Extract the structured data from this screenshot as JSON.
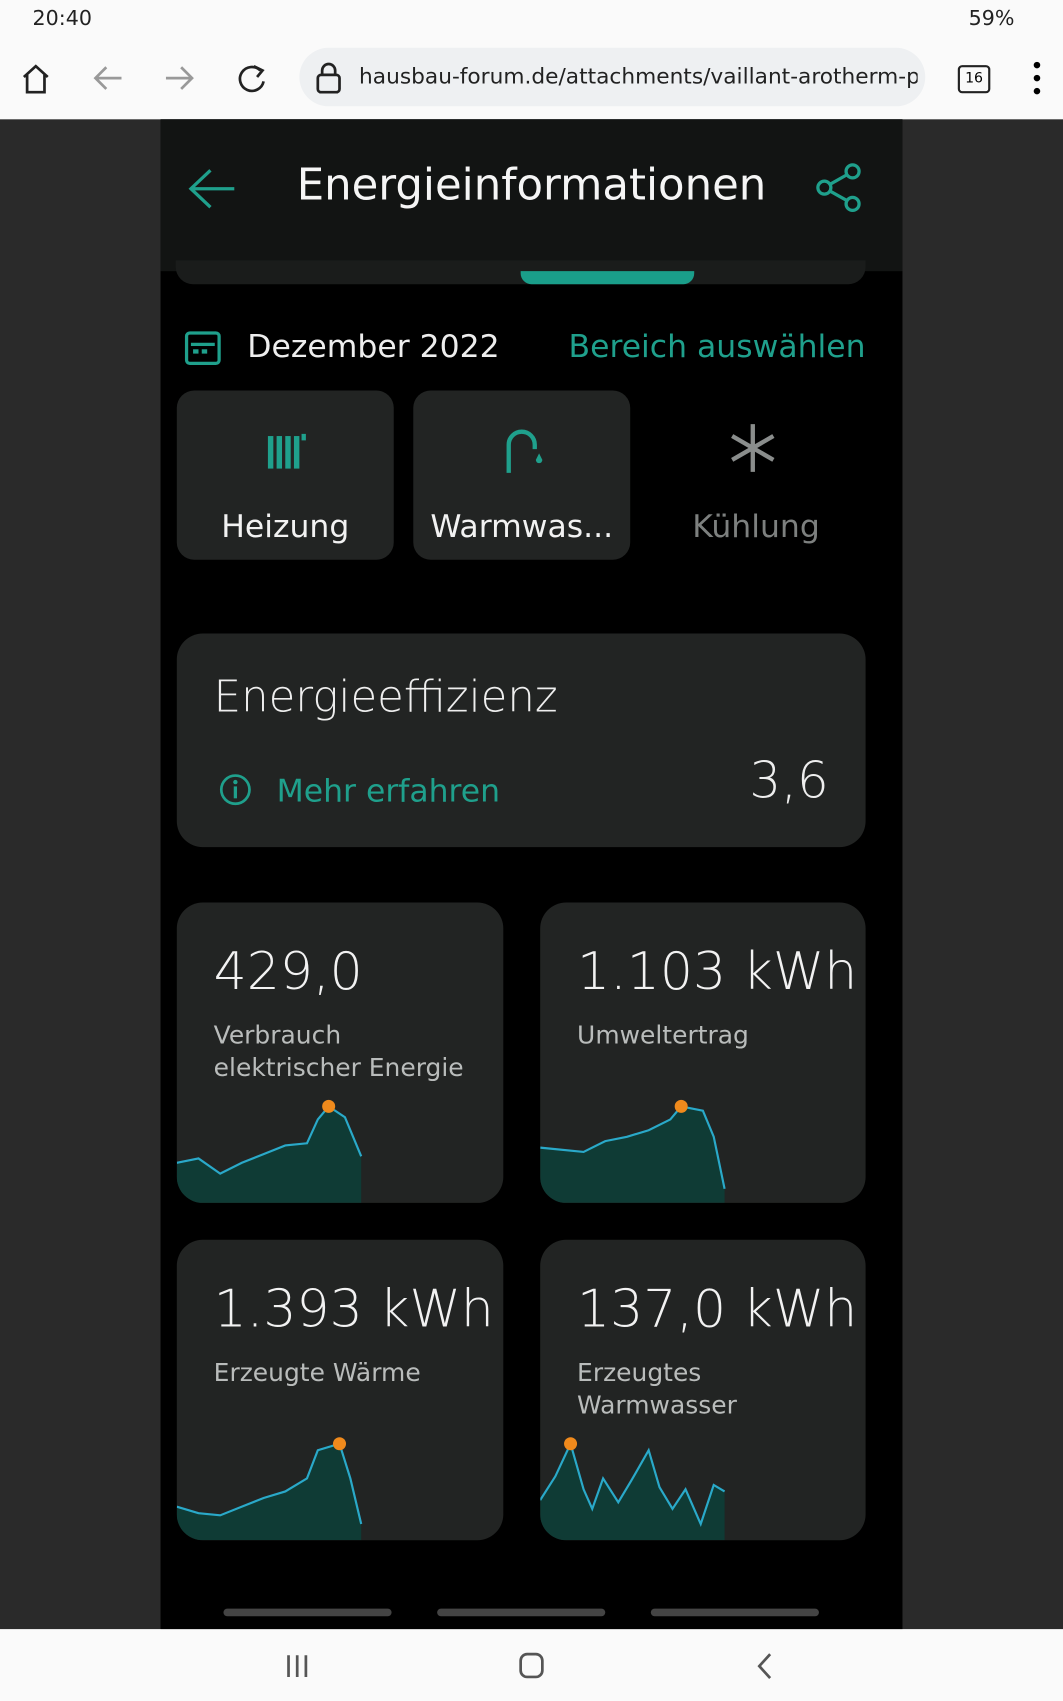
{
  "status": {
    "time": "20:40",
    "battery": "59%"
  },
  "browser": {
    "url": "hausbau-forum.de/attachments/vaillant-arotherm-plus-v",
    "tab_count": "16"
  },
  "app": {
    "title": "Energieinformationen",
    "month": "Dezember 2022",
    "range_action": "Bereich auswählen",
    "tabs": [
      "Heizung",
      "Warmwas...",
      "Kühlung"
    ],
    "efficiency": {
      "label": "Energieeffizienz",
      "link": "Mehr erfahren",
      "value": "3,6"
    },
    "cards": [
      {
        "value": "429,0",
        "label": "Verbrauch\nelektrischer Energie"
      },
      {
        "value": "1.103 kWh",
        "label": "Umweltertrag"
      },
      {
        "value": "1.393 kWh",
        "label": "Erzeugte Wärme"
      },
      {
        "value": "137,0 kWh",
        "label": "Erzeugtes\nWarmwasser"
      }
    ]
  }
}
